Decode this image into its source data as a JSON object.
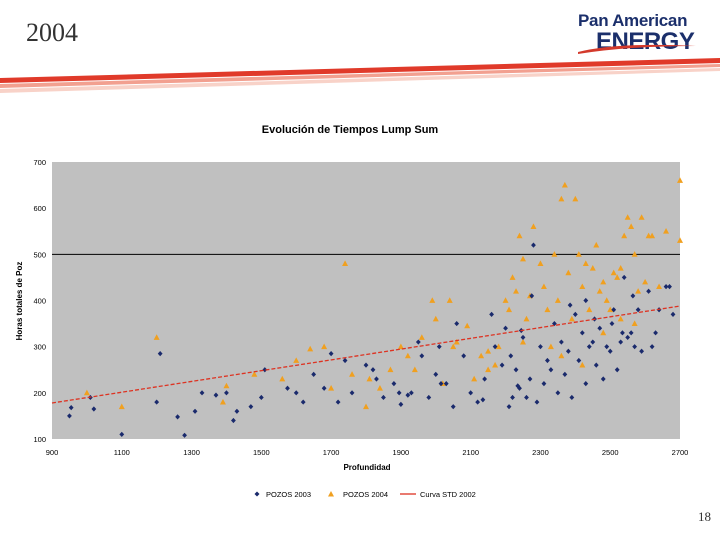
{
  "slide": {
    "year": "2004",
    "page_number": "18"
  },
  "logo": {
    "line1": "Pan American",
    "line2": "ENERGY",
    "color": "#1b2f6b"
  },
  "chart_data": {
    "type": "scatter",
    "title": "Evolución de Tiempos Lump Sum",
    "xlabel": "Profundidad",
    "ylabel": "Horas totales de Poz",
    "xlim": [
      900,
      2700
    ],
    "ylim": [
      100,
      700
    ],
    "xticks": [
      900,
      1100,
      1300,
      1500,
      1700,
      1900,
      2100,
      2300,
      2500,
      2700
    ],
    "yticks": [
      100,
      200,
      300,
      400,
      500,
      600,
      700
    ],
    "reference_line": 500,
    "legend": [
      "POZOS 2003",
      "POZOS 2004",
      "Curva STD 2002"
    ],
    "series": [
      {
        "name": "POZOS 2003",
        "marker": "diamond",
        "color": "#1a2a6c",
        "points": [
          [
            950,
            150
          ],
          [
            955,
            168
          ],
          [
            1010,
            190
          ],
          [
            1020,
            165
          ],
          [
            1100,
            110
          ],
          [
            1200,
            180
          ],
          [
            1210,
            285
          ],
          [
            1260,
            148
          ],
          [
            1280,
            108
          ],
          [
            1310,
            160
          ],
          [
            1330,
            200
          ],
          [
            1370,
            195
          ],
          [
            1400,
            200
          ],
          [
            1420,
            140
          ],
          [
            1430,
            160
          ],
          [
            1470,
            170
          ],
          [
            1500,
            190
          ],
          [
            1510,
            250
          ],
          [
            1600,
            200
          ],
          [
            1620,
            180
          ],
          [
            1650,
            240
          ],
          [
            1680,
            210
          ],
          [
            1700,
            285
          ],
          [
            1720,
            180
          ],
          [
            1740,
            270
          ],
          [
            1760,
            200
          ],
          [
            1800,
            260
          ],
          [
            1820,
            250
          ],
          [
            1830,
            230
          ],
          [
            1850,
            190
          ],
          [
            1880,
            220
          ],
          [
            1900,
            175
          ],
          [
            1920,
            195
          ],
          [
            1930,
            200
          ],
          [
            1950,
            310
          ],
          [
            1960,
            280
          ],
          [
            1980,
            190
          ],
          [
            2000,
            240
          ],
          [
            2010,
            300
          ],
          [
            2030,
            220
          ],
          [
            2050,
            170
          ],
          [
            2060,
            350
          ],
          [
            2080,
            280
          ],
          [
            2100,
            200
          ],
          [
            2120,
            180
          ],
          [
            2140,
            230
          ],
          [
            2160,
            370
          ],
          [
            2170,
            300
          ],
          [
            2190,
            260
          ],
          [
            2200,
            340
          ],
          [
            2210,
            170
          ],
          [
            2220,
            190
          ],
          [
            2230,
            250
          ],
          [
            2240,
            210
          ],
          [
            2250,
            320
          ],
          [
            2260,
            190
          ],
          [
            2270,
            230
          ],
          [
            2280,
            520
          ],
          [
            2290,
            180
          ],
          [
            2300,
            300
          ],
          [
            2310,
            220
          ],
          [
            2320,
            270
          ],
          [
            2330,
            250
          ],
          [
            2340,
            350
          ],
          [
            2350,
            200
          ],
          [
            2360,
            310
          ],
          [
            2370,
            240
          ],
          [
            2380,
            290
          ],
          [
            2390,
            190
          ],
          [
            2400,
            370
          ],
          [
            2410,
            270
          ],
          [
            2420,
            330
          ],
          [
            2430,
            220
          ],
          [
            2440,
            300
          ],
          [
            2450,
            310
          ],
          [
            2460,
            260
          ],
          [
            2470,
            340
          ],
          [
            2480,
            230
          ],
          [
            2490,
            300
          ],
          [
            2500,
            290
          ],
          [
            2510,
            380
          ],
          [
            2520,
            250
          ],
          [
            2530,
            310
          ],
          [
            2540,
            450
          ],
          [
            2550,
            320
          ],
          [
            2560,
            330
          ],
          [
            2570,
            300
          ],
          [
            2580,
            380
          ],
          [
            2590,
            290
          ],
          [
            2610,
            420
          ],
          [
            2620,
            300
          ],
          [
            2630,
            330
          ],
          [
            2640,
            380
          ],
          [
            2660,
            430
          ],
          [
            2670,
            430
          ],
          [
            2680,
            370
          ],
          [
            2275,
            410
          ],
          [
            2385,
            390
          ],
          [
            2430,
            400
          ],
          [
            2455,
            360
          ],
          [
            2505,
            350
          ],
          [
            2535,
            330
          ],
          [
            2565,
            410
          ],
          [
            2215,
            280
          ],
          [
            2235,
            215
          ],
          [
            2245,
            335
          ],
          [
            2135,
            185
          ],
          [
            2015,
            220
          ],
          [
            1895,
            200
          ],
          [
            1575,
            210
          ]
        ]
      },
      {
        "name": "POZOS 2004",
        "marker": "triangle",
        "color": "#f0a020",
        "points": [
          [
            1000,
            200
          ],
          [
            1100,
            170
          ],
          [
            1200,
            320
          ],
          [
            1390,
            180
          ],
          [
            1400,
            215
          ],
          [
            1480,
            240
          ],
          [
            1560,
            230
          ],
          [
            1600,
            270
          ],
          [
            1640,
            295
          ],
          [
            1680,
            300
          ],
          [
            1700,
            210
          ],
          [
            1740,
            480
          ],
          [
            1760,
            240
          ],
          [
            1800,
            170
          ],
          [
            1810,
            230
          ],
          [
            1840,
            210
          ],
          [
            1870,
            250
          ],
          [
            1900,
            300
          ],
          [
            1920,
            280
          ],
          [
            1940,
            250
          ],
          [
            1960,
            320
          ],
          [
            1990,
            400
          ],
          [
            2000,
            360
          ],
          [
            2020,
            220
          ],
          [
            2040,
            400
          ],
          [
            2060,
            310
          ],
          [
            2090,
            345
          ],
          [
            2110,
            230
          ],
          [
            2130,
            280
          ],
          [
            2150,
            290
          ],
          [
            2170,
            260
          ],
          [
            2180,
            300
          ],
          [
            2200,
            400
          ],
          [
            2210,
            380
          ],
          [
            2220,
            450
          ],
          [
            2230,
            420
          ],
          [
            2240,
            540
          ],
          [
            2250,
            490
          ],
          [
            2260,
            360
          ],
          [
            2270,
            410
          ],
          [
            2280,
            560
          ],
          [
            2300,
            480
          ],
          [
            2310,
            430
          ],
          [
            2320,
            380
          ],
          [
            2340,
            500
          ],
          [
            2350,
            400
          ],
          [
            2360,
            620
          ],
          [
            2370,
            650
          ],
          [
            2380,
            460
          ],
          [
            2390,
            360
          ],
          [
            2400,
            620
          ],
          [
            2410,
            500
          ],
          [
            2420,
            430
          ],
          [
            2430,
            480
          ],
          [
            2440,
            380
          ],
          [
            2450,
            470
          ],
          [
            2460,
            520
          ],
          [
            2470,
            420
          ],
          [
            2480,
            440
          ],
          [
            2490,
            400
          ],
          [
            2500,
            380
          ],
          [
            2510,
            460
          ],
          [
            2520,
            450
          ],
          [
            2530,
            470
          ],
          [
            2540,
            540
          ],
          [
            2550,
            580
          ],
          [
            2560,
            560
          ],
          [
            2570,
            500
          ],
          [
            2580,
            420
          ],
          [
            2590,
            580
          ],
          [
            2600,
            440
          ],
          [
            2610,
            540
          ],
          [
            2620,
            540
          ],
          [
            2640,
            430
          ],
          [
            2660,
            550
          ],
          [
            2700,
            660
          ],
          [
            2700,
            530
          ],
          [
            2150,
            250
          ],
          [
            2250,
            310
          ],
          [
            2330,
            300
          ],
          [
            2360,
            280
          ],
          [
            2420,
            260
          ],
          [
            2480,
            330
          ],
          [
            2530,
            360
          ],
          [
            2570,
            350
          ],
          [
            2050,
            300
          ]
        ]
      },
      {
        "name": "Curva STD 2002",
        "type": "line",
        "color": "#dd3322",
        "points": [
          [
            900,
            178
          ],
          [
            2700,
            388
          ]
        ]
      }
    ]
  }
}
